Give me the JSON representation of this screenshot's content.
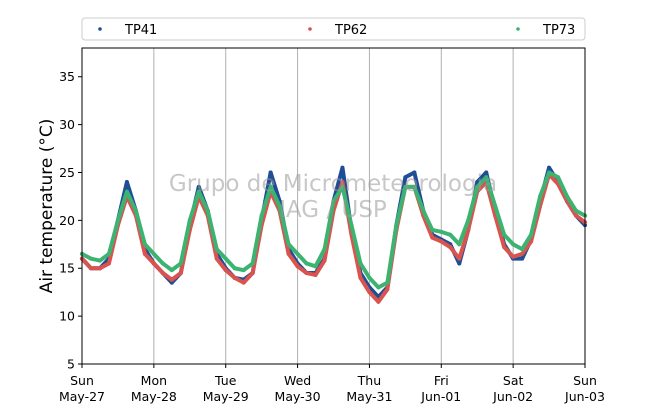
{
  "chart_data": {
    "type": "line",
    "ylabel": "Air temperature (°C)",
    "ylim": [
      5,
      38
    ],
    "yticks": [
      5,
      10,
      15,
      20,
      25,
      30,
      35
    ],
    "xlim": [
      "2018-05-27 00:00",
      "2018-06-03 00:00"
    ],
    "x_tick_labels": [
      {
        "day": "Sun",
        "date": "May-27"
      },
      {
        "day": "Mon",
        "date": "May-28"
      },
      {
        "day": "Tue",
        "date": "May-29"
      },
      {
        "day": "Wed",
        "date": "May-30"
      },
      {
        "day": "Thu",
        "date": "May-31"
      },
      {
        "day": "Fri",
        "date": "Jun-01"
      },
      {
        "day": "Sat",
        "date": "Jun-02"
      },
      {
        "day": "Sun",
        "date": "Jun-03"
      }
    ],
    "grid": "vertical",
    "legend_position": "top",
    "watermark": [
      "Grupo de Micrometeorologia",
      "IAG / USP"
    ],
    "x": [
      "2018-05-27 00:00",
      "2018-05-27 03:00",
      "2018-05-27 06:00",
      "2018-05-27 09:00",
      "2018-05-27 12:00",
      "2018-05-27 15:00",
      "2018-05-27 18:00",
      "2018-05-27 21:00",
      "2018-05-28 00:00",
      "2018-05-28 03:00",
      "2018-05-28 06:00",
      "2018-05-28 09:00",
      "2018-05-28 12:00",
      "2018-05-28 15:00",
      "2018-05-28 18:00",
      "2018-05-28 21:00",
      "2018-05-29 00:00",
      "2018-05-29 03:00",
      "2018-05-29 06:00",
      "2018-05-29 09:00",
      "2018-05-29 12:00",
      "2018-05-29 15:00",
      "2018-05-29 18:00",
      "2018-05-29 21:00",
      "2018-05-30 00:00",
      "2018-05-30 03:00",
      "2018-05-30 06:00",
      "2018-05-30 09:00",
      "2018-05-30 12:00",
      "2018-05-30 15:00",
      "2018-05-30 18:00",
      "2018-05-30 21:00",
      "2018-05-31 00:00",
      "2018-05-31 03:00",
      "2018-05-31 06:00",
      "2018-05-31 09:00",
      "2018-05-31 12:00",
      "2018-05-31 15:00",
      "2018-05-31 18:00",
      "2018-05-31 21:00",
      "2018-06-01 00:00",
      "2018-06-01 03:00",
      "2018-06-01 06:00",
      "2018-06-01 09:00",
      "2018-06-01 12:00",
      "2018-06-01 15:00",
      "2018-06-01 18:00",
      "2018-06-01 21:00",
      "2018-06-02 00:00",
      "2018-06-02 03:00",
      "2018-06-02 06:00",
      "2018-06-02 09:00",
      "2018-06-02 12:00",
      "2018-06-02 15:00",
      "2018-06-02 18:00",
      "2018-06-02 21:00",
      "2018-06-03 00:00"
    ],
    "series": [
      {
        "name": "TP41",
        "color": "#1f4e96",
        "values": [
          16.0,
          15.0,
          15.0,
          16.0,
          20.0,
          24.0,
          21.0,
          17.0,
          15.5,
          14.5,
          13.5,
          14.5,
          19.5,
          23.5,
          21.0,
          16.5,
          15.0,
          14.0,
          13.8,
          14.5,
          20.0,
          25.0,
          22.0,
          17.0,
          15.5,
          14.5,
          14.5,
          16.0,
          22.0,
          25.5,
          19.0,
          14.5,
          13.0,
          12.0,
          13.0,
          19.5,
          24.5,
          25.0,
          21.0,
          18.5,
          18.0,
          17.5,
          15.5,
          19.0,
          24.0,
          25.0,
          21.0,
          17.5,
          16.0,
          16.0,
          18.0,
          22.0,
          25.5,
          24.0,
          22.0,
          20.5,
          19.5
        ]
      },
      {
        "name": "TP62",
        "color": "#d9534f",
        "values": [
          16.0,
          15.0,
          15.0,
          15.5,
          19.5,
          22.5,
          20.5,
          16.5,
          15.5,
          14.5,
          13.8,
          14.5,
          19.0,
          22.5,
          20.5,
          16.0,
          14.8,
          14.0,
          13.5,
          14.5,
          19.5,
          23.0,
          21.0,
          16.5,
          15.2,
          14.5,
          14.3,
          15.8,
          21.0,
          24.0,
          18.5,
          14.0,
          12.5,
          11.5,
          12.8,
          19.0,
          23.5,
          23.5,
          20.5,
          18.2,
          17.8,
          17.2,
          16.0,
          19.0,
          23.0,
          24.0,
          20.5,
          17.2,
          16.2,
          16.5,
          17.8,
          21.5,
          24.8,
          23.8,
          22.0,
          20.5,
          19.8
        ]
      },
      {
        "name": "TP73",
        "color": "#3cb371",
        "values": [
          16.5,
          16.0,
          15.8,
          16.5,
          20.0,
          23.0,
          21.0,
          17.5,
          16.5,
          15.5,
          14.8,
          15.5,
          20.0,
          23.0,
          21.0,
          17.0,
          16.0,
          15.0,
          14.8,
          15.5,
          20.5,
          23.5,
          21.5,
          17.5,
          16.5,
          15.5,
          15.2,
          17.0,
          22.0,
          23.5,
          19.5,
          15.5,
          14.0,
          13.0,
          13.5,
          19.5,
          23.5,
          23.5,
          21.0,
          19.0,
          18.8,
          18.5,
          17.5,
          20.0,
          23.5,
          24.5,
          21.5,
          18.5,
          17.5,
          17.0,
          18.5,
          22.5,
          25.0,
          24.5,
          22.5,
          21.0,
          20.5
        ]
      }
    ]
  }
}
